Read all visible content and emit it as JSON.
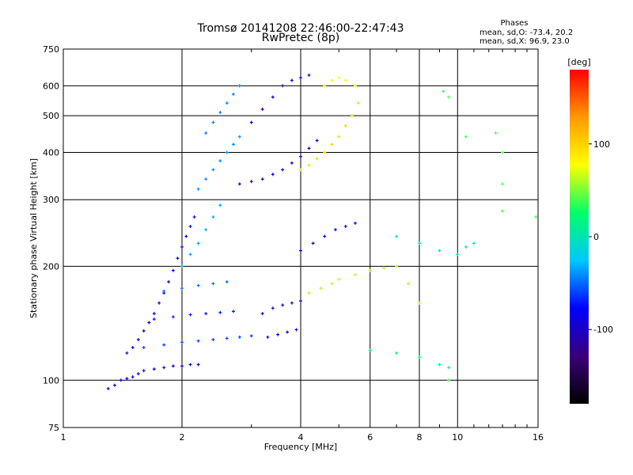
{
  "chart_data": {
    "type": "scatter",
    "title": "Tromsø 20141208 22:46:00-22:47:43",
    "subtitle": "RwPretec (8p)",
    "xlabel": "Frequency [MHz]",
    "ylabel": "Stationary phase Virtual Height [km]",
    "x_scale": "log",
    "y_scale": "log",
    "xlim": [
      1,
      16
    ],
    "ylim": [
      75,
      750
    ],
    "x_ticks": [
      1,
      2,
      4,
      6,
      8,
      10,
      16
    ],
    "x_tick_labels": [
      "1",
      "2",
      "4",
      "6",
      "8",
      "10",
      "16"
    ],
    "y_ticks": [
      75,
      100,
      200,
      300,
      400,
      500,
      600,
      750
    ],
    "y_tick_labels": [
      "75",
      "100",
      "200",
      "300",
      "400",
      "500",
      "600",
      "750"
    ],
    "grid": true,
    "phase_legend": {
      "heading": "Phases",
      "line1": "mean, sd,O: -73.4, 20.2",
      "line2": "mean, sd,X:  96.9, 23.0"
    },
    "colorbar": {
      "label": "[deg]",
      "range": [
        -180,
        180
      ],
      "ticks": [
        100,
        0,
        -100
      ],
      "tick_labels": [
        "100",
        "0",
        "-100"
      ],
      "colors": [
        "#000000",
        "#3a007a",
        "#0000ff",
        "#00c8ff",
        "#00ff66",
        "#ffff00",
        "#ff9900",
        "#ff0000"
      ]
    },
    "series": [
      {
        "name": "low_trace",
        "points": [
          [
            1.3,
            95
          ],
          [
            1.35,
            97
          ],
          [
            1.4,
            100
          ],
          [
            1.45,
            101
          ],
          [
            1.5,
            102
          ],
          [
            1.55,
            104
          ],
          [
            1.6,
            106
          ],
          [
            1.7,
            107
          ],
          [
            1.8,
            108
          ],
          [
            1.9,
            109
          ],
          [
            2.0,
            109
          ],
          [
            2.1,
            110
          ],
          [
            2.2,
            110
          ]
        ],
        "phase": -90
      },
      {
        "name": "e_diag",
        "points": [
          [
            1.45,
            118
          ],
          [
            1.5,
            122
          ],
          [
            1.55,
            128
          ],
          [
            1.6,
            135
          ],
          [
            1.65,
            142
          ],
          [
            1.7,
            150
          ],
          [
            1.75,
            160
          ],
          [
            1.8,
            170
          ],
          [
            1.85,
            182
          ],
          [
            1.9,
            195
          ],
          [
            1.95,
            210
          ],
          [
            2.0,
            225
          ],
          [
            2.05,
            240
          ],
          [
            2.1,
            255
          ],
          [
            2.15,
            270
          ]
        ],
        "phase": -95
      },
      {
        "name": "band_120",
        "points": [
          [
            1.6,
            122
          ],
          [
            1.8,
            124
          ],
          [
            2.0,
            126
          ],
          [
            2.2,
            127
          ],
          [
            2.4,
            128
          ],
          [
            2.6,
            129
          ],
          [
            2.8,
            130
          ],
          [
            3.0,
            131
          ]
        ],
        "phase": -60
      },
      {
        "name": "band_145",
        "points": [
          [
            1.7,
            145
          ],
          [
            1.9,
            147
          ],
          [
            2.1,
            149
          ],
          [
            2.3,
            150
          ],
          [
            2.5,
            151
          ],
          [
            2.7,
            152
          ]
        ],
        "phase": -70
      },
      {
        "name": "band_175",
        "points": [
          [
            1.8,
            172
          ],
          [
            2.0,
            175
          ],
          [
            2.2,
            178
          ],
          [
            2.4,
            180
          ],
          [
            2.6,
            182
          ]
        ],
        "phase": -50
      },
      {
        "name": "f_cyan_low",
        "points": [
          [
            2.0,
            200
          ],
          [
            2.1,
            215
          ],
          [
            2.2,
            230
          ],
          [
            2.3,
            250
          ],
          [
            2.4,
            270
          ],
          [
            2.5,
            290
          ]
        ],
        "phase": -35
      },
      {
        "name": "f_cyan_mid",
        "points": [
          [
            2.2,
            320
          ],
          [
            2.3,
            340
          ],
          [
            2.4,
            360
          ],
          [
            2.5,
            380
          ],
          [
            2.6,
            400
          ],
          [
            2.7,
            420
          ],
          [
            2.8,
            440
          ]
        ],
        "phase": -40
      },
      {
        "name": "f_cyan_high",
        "points": [
          [
            2.3,
            450
          ],
          [
            2.4,
            480
          ],
          [
            2.5,
            510
          ],
          [
            2.6,
            540
          ],
          [
            2.7,
            570
          ],
          [
            2.8,
            600
          ]
        ],
        "phase": -45
      },
      {
        "name": "f_blue_arc",
        "points": [
          [
            2.8,
            330
          ],
          [
            3.0,
            335
          ],
          [
            3.2,
            340
          ],
          [
            3.4,
            350
          ],
          [
            3.6,
            360
          ],
          [
            3.8,
            375
          ],
          [
            4.0,
            390
          ],
          [
            4.2,
            410
          ],
          [
            4.4,
            430
          ]
        ],
        "phase": -95
      },
      {
        "name": "f_blue_upper",
        "points": [
          [
            3.0,
            480
          ],
          [
            3.2,
            520
          ],
          [
            3.4,
            560
          ],
          [
            3.6,
            600
          ],
          [
            3.8,
            620
          ],
          [
            4.0,
            630
          ],
          [
            4.2,
            640
          ]
        ],
        "phase": -100
      },
      {
        "name": "x_yellow_arc",
        "points": [
          [
            4.0,
            360
          ],
          [
            4.2,
            370
          ],
          [
            4.4,
            385
          ],
          [
            4.6,
            400
          ],
          [
            4.8,
            420
          ],
          [
            5.0,
            440
          ],
          [
            5.2,
            470
          ],
          [
            5.4,
            500
          ],
          [
            5.6,
            540
          ]
        ],
        "phase": 100
      },
      {
        "name": "x_orange_top",
        "points": [
          [
            4.6,
            600
          ],
          [
            4.8,
            620
          ],
          [
            5.0,
            630
          ],
          [
            5.2,
            620
          ],
          [
            5.5,
            600
          ]
        ],
        "phase": 75
      },
      {
        "name": "mid_cluster_blue",
        "points": [
          [
            3.2,
            150
          ],
          [
            3.4,
            155
          ],
          [
            3.6,
            158
          ],
          [
            3.8,
            160
          ],
          [
            4.0,
            162
          ],
          [
            3.3,
            130
          ],
          [
            3.5,
            132
          ],
          [
            3.7,
            134
          ],
          [
            3.9,
            136
          ]
        ],
        "phase": -100
      },
      {
        "name": "mid_cluster_mixed",
        "points": [
          [
            4.2,
            170
          ],
          [
            4.5,
            175
          ],
          [
            4.8,
            180
          ],
          [
            5.0,
            185
          ],
          [
            5.5,
            190
          ],
          [
            6.0,
            195
          ],
          [
            6.5,
            198
          ],
          [
            7.0,
            200
          ],
          [
            7.5,
            180
          ],
          [
            8.0,
            160
          ]
        ],
        "phase": 60
      },
      {
        "name": "f2_200_250",
        "points": [
          [
            4.0,
            220
          ],
          [
            4.3,
            230
          ],
          [
            4.6,
            240
          ],
          [
            4.9,
            250
          ],
          [
            5.2,
            255
          ],
          [
            5.5,
            260
          ]
        ],
        "phase": -80
      },
      {
        "name": "scatter_right",
        "points": [
          [
            7.0,
            240
          ],
          [
            8.0,
            230
          ],
          [
            9.0,
            220
          ],
          [
            10.0,
            215
          ],
          [
            10.5,
            225
          ],
          [
            11.0,
            230
          ]
        ],
        "phase": 10
      },
      {
        "name": "scatter_low_right",
        "points": [
          [
            6.0,
            120
          ],
          [
            7.0,
            118
          ],
          [
            8.0,
            115
          ],
          [
            9.0,
            110
          ],
          [
            9.5,
            108
          ]
        ],
        "phase": 20
      },
      {
        "name": "sparse_high_right",
        "points": [
          [
            9.2,
            580
          ],
          [
            9.5,
            560
          ],
          [
            10.5,
            440
          ],
          [
            12.5,
            450
          ],
          [
            13.0,
            400
          ],
          [
            13.0,
            330
          ],
          [
            15.8,
            270
          ],
          [
            13.0,
            280
          ],
          [
            9.5,
            100
          ]
        ],
        "phase": 40
      }
    ]
  }
}
